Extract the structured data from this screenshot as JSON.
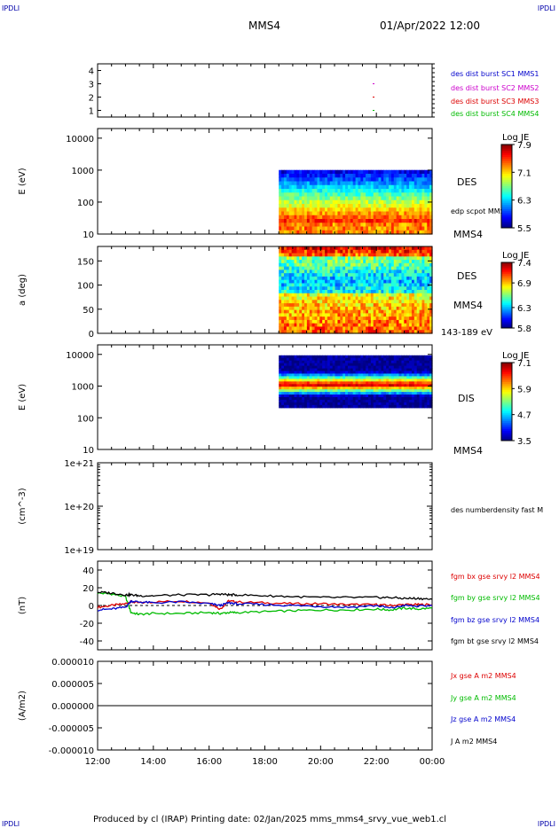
{
  "header": {
    "corner_label": "IPDLI",
    "spacecraft": "MMS4",
    "date_time": "01/Apr/2022 12:00"
  },
  "footer": {
    "text": "Produced by cl (IRAP)   Printing date: 02/Jan/2025   mms_mms4_srvy_vue_web1.cl"
  },
  "colors": {
    "blue": "#0000cc",
    "magenta": "#cc00cc",
    "red": "#dd0000",
    "green": "#00bb00",
    "black": "#000000"
  },
  "chart_data": [
    {
      "id": "burst",
      "type": "scatter",
      "xlabel": "",
      "ylabel": "",
      "ylim": [
        0.5,
        4.5
      ],
      "yticks": [
        "1",
        "2",
        "3",
        "4"
      ],
      "series": [
        {
          "name": "des dist burst SC1 MMS1",
          "color": "#0000cc",
          "y": 4,
          "points": []
        },
        {
          "name": "des dist burst SC2 MMS2",
          "color": "#cc00cc",
          "y": 3,
          "points": [
            21.9
          ]
        },
        {
          "name": "des dist burst SC3 MMS3",
          "color": "#dd0000",
          "y": 2,
          "points": [
            21.9
          ]
        },
        {
          "name": "des dist burst SC4 MMS4",
          "color": "#00bb00",
          "y": 1,
          "points": [
            21.9
          ]
        }
      ]
    },
    {
      "id": "des_energy",
      "type": "heatmap",
      "ylabel": "E (eV)",
      "yscale": "log",
      "ylim": [
        10,
        20000
      ],
      "yticks": [
        "10",
        "100",
        "1000",
        "10000"
      ],
      "data_start": "18:30",
      "label": "DES",
      "sublabel": "MMS4",
      "overlay_label": "edp scpot MMS4",
      "colorbar": {
        "title": "Log JE",
        "ticks": [
          "7.9",
          "7.1",
          "6.3",
          "5.5"
        ],
        "min": 5.5,
        "max": 7.9
      }
    },
    {
      "id": "des_pitch",
      "type": "heatmap",
      "ylabel": "a (deg)",
      "ylim": [
        0,
        180
      ],
      "yticks": [
        "0",
        "50",
        "100",
        "150"
      ],
      "data_start": "18:30",
      "label": "DES",
      "sublabel": "MMS4",
      "energy_range": "143-189 eV",
      "colorbar": {
        "title": "Log JE",
        "ticks": [
          "7.4",
          "6.9",
          "6.3",
          "5.8"
        ],
        "min": 5.8,
        "max": 7.4
      }
    },
    {
      "id": "dis_energy",
      "type": "heatmap",
      "ylabel": "E (eV)",
      "yscale": "log",
      "ylim": [
        10,
        20000
      ],
      "yticks": [
        "10",
        "100",
        "1000",
        "10000"
      ],
      "data_start": "18:30",
      "label": "DIS",
      "sublabel": "MMS4",
      "colorbar": {
        "title": "Log JE",
        "ticks": [
          "7.1",
          "5.9",
          "4.7",
          "3.5"
        ],
        "min": 3.5,
        "max": 7.1
      }
    },
    {
      "id": "density",
      "type": "line",
      "ylabel": "(cm^-3)",
      "yscale": "log",
      "ylim": [
        1e+19,
        1e+21
      ],
      "yticks": [
        "1e+19",
        "1e+20",
        "1e+21"
      ],
      "series": [
        {
          "name": "des numberdensity fast M",
          "color": "#000000",
          "points": []
        }
      ]
    },
    {
      "id": "fgm",
      "type": "line",
      "ylabel": "(nT)",
      "ylim": [
        -50,
        50
      ],
      "yticks": [
        "-40",
        "-20",
        "0",
        "20",
        "40"
      ],
      "series": [
        {
          "name": "fgm bx gse srvy l2 MMS4",
          "color": "#dd0000"
        },
        {
          "name": "fgm by gse srvy l2 MMS4",
          "color": "#00bb00"
        },
        {
          "name": "fgm bz gse srvy l2 MMS4",
          "color": "#0000cc"
        },
        {
          "name": "fgm bt gse srvy l2 MMS4",
          "color": "#000000"
        }
      ],
      "times": [
        12.0,
        12.5,
        13.0,
        13.2,
        13.5,
        14.0,
        15.0,
        16.0,
        16.4,
        16.7,
        17.0,
        18.0,
        19.0,
        20.0,
        21.0,
        22.0,
        22.5,
        23.0,
        23.5,
        24.0
      ],
      "values": {
        "fgm bx gse srvy l2 MMS4": [
          -2,
          0,
          2,
          4,
          3,
          4,
          5,
          3,
          -4,
          5,
          4,
          3,
          2,
          2,
          1,
          1,
          0,
          1,
          1,
          1
        ],
        "fgm by gse srvy l2 MMS4": [
          14,
          13,
          10,
          -8,
          -10,
          -9,
          -9,
          -8,
          -9,
          -8,
          -8,
          -7,
          -6,
          -5,
          -5,
          -4,
          -5,
          -3,
          -4,
          -3
        ],
        "fgm bz gse srvy l2 MMS4": [
          -5,
          -4,
          -2,
          5,
          4,
          3,
          4,
          2,
          0,
          3,
          2,
          1,
          0,
          -1,
          -2,
          0,
          -3,
          0,
          -1,
          0
        ],
        "fgm bt gse srvy l2 MMS4": [
          15,
          14,
          12,
          12,
          11,
          11,
          12,
          12,
          13,
          12,
          12,
          11,
          10,
          9,
          9,
          9,
          9,
          8,
          8,
          7
        ]
      }
    },
    {
      "id": "current",
      "type": "line",
      "ylabel": "(A/m2)",
      "ylim": [
        -1e-05,
        1e-05
      ],
      "yticks": [
        "-0.000010",
        "-0.000005",
        "0.000000",
        "0.000005",
        "0.000010"
      ],
      "series": [
        {
          "name": "Jx gse A m2 MMS4",
          "color": "#dd0000"
        },
        {
          "name": "Jy gse A m2 MMS4",
          "color": "#00bb00"
        },
        {
          "name": "Jz gse A m2 MMS4",
          "color": "#0000cc"
        },
        {
          "name": "J A m2 MMS4",
          "color": "#000000"
        }
      ],
      "times": [
        12,
        24
      ],
      "values": {
        "J A m2 MMS4": [
          0,
          0
        ]
      }
    }
  ],
  "xaxis": {
    "xlim": [
      12,
      24
    ],
    "tick_hours": [
      12,
      14,
      16,
      18,
      20,
      22,
      24
    ],
    "tick_labels": [
      "12:00",
      "14:00",
      "16:00",
      "18:00",
      "20:00",
      "22:00",
      "00:00"
    ]
  }
}
